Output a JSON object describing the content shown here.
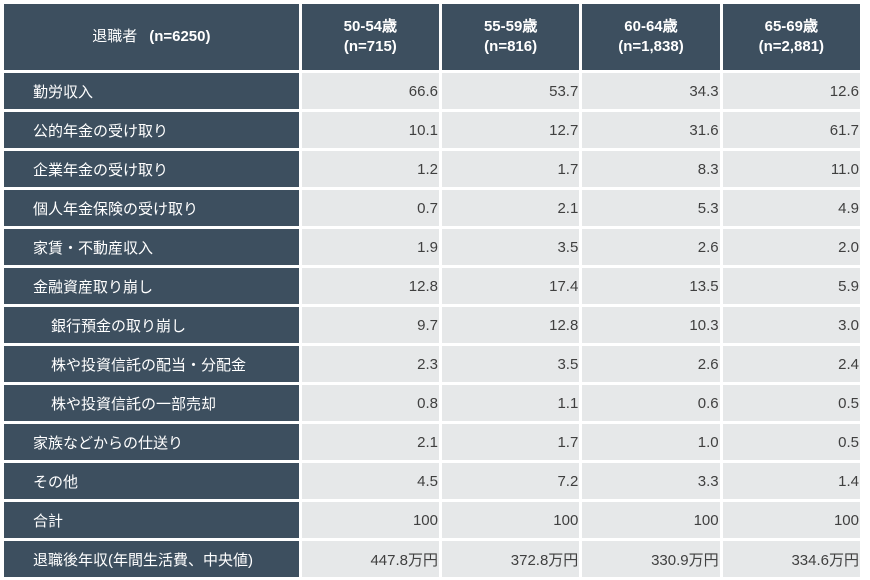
{
  "table": {
    "header": {
      "title": "退職者",
      "n": "(n=6250)",
      "columns": [
        {
          "age": "50-54歳",
          "n": "(n=715)"
        },
        {
          "age": "55-59歳",
          "n": "(n=816)"
        },
        {
          "age": "60-64歳",
          "n": "(n=1,838)"
        },
        {
          "age": "65-69歳",
          "n": "(n=2,881)"
        }
      ]
    },
    "rows": [
      {
        "label": "勤労収入",
        "indent": false,
        "values": [
          "66.6",
          "53.7",
          "34.3",
          "12.6"
        ]
      },
      {
        "label": "公的年金の受け取り",
        "indent": false,
        "values": [
          "10.1",
          "12.7",
          "31.6",
          "61.7"
        ]
      },
      {
        "label": "企業年金の受け取り",
        "indent": false,
        "values": [
          "1.2",
          "1.7",
          "8.3",
          "11.0"
        ]
      },
      {
        "label": "個人年金保険の受け取り",
        "indent": false,
        "values": [
          "0.7",
          "2.1",
          "5.3",
          "4.9"
        ]
      },
      {
        "label": "家賃・不動産収入",
        "indent": false,
        "values": [
          "1.9",
          "3.5",
          "2.6",
          "2.0"
        ]
      },
      {
        "label": "金融資産取り崩し",
        "indent": false,
        "values": [
          "12.8",
          "17.4",
          "13.5",
          "5.9"
        ]
      },
      {
        "label": "銀行預金の取り崩し",
        "indent": true,
        "values": [
          "9.7",
          "12.8",
          "10.3",
          "3.0"
        ]
      },
      {
        "label": "株や投資信託の配当・分配金",
        "indent": true,
        "values": [
          "2.3",
          "3.5",
          "2.6",
          "2.4"
        ]
      },
      {
        "label": "株や投資信託の一部売却",
        "indent": true,
        "values": [
          "0.8",
          "1.1",
          "0.6",
          "0.5"
        ]
      },
      {
        "label": "家族などからの仕送り",
        "indent": false,
        "values": [
          "2.1",
          "1.7",
          "1.0",
          "0.5"
        ]
      },
      {
        "label": "その他",
        "indent": false,
        "values": [
          "4.5",
          "7.2",
          "3.3",
          "1.4"
        ]
      },
      {
        "label": "合計",
        "indent": false,
        "values": [
          "100",
          "100",
          "100",
          "100"
        ]
      },
      {
        "label": "退職後年収(年間生活費、中央値)",
        "indent": false,
        "values": [
          "447.8万円",
          "372.8万円",
          "330.9万円",
          "334.6万円"
        ]
      }
    ]
  },
  "colors": {
    "header_bg": "#3d4f5f",
    "header_text": "#ffffff",
    "cell_bg": "#e6e8e9",
    "cell_text": "#404040",
    "grid": "#ffffff"
  }
}
